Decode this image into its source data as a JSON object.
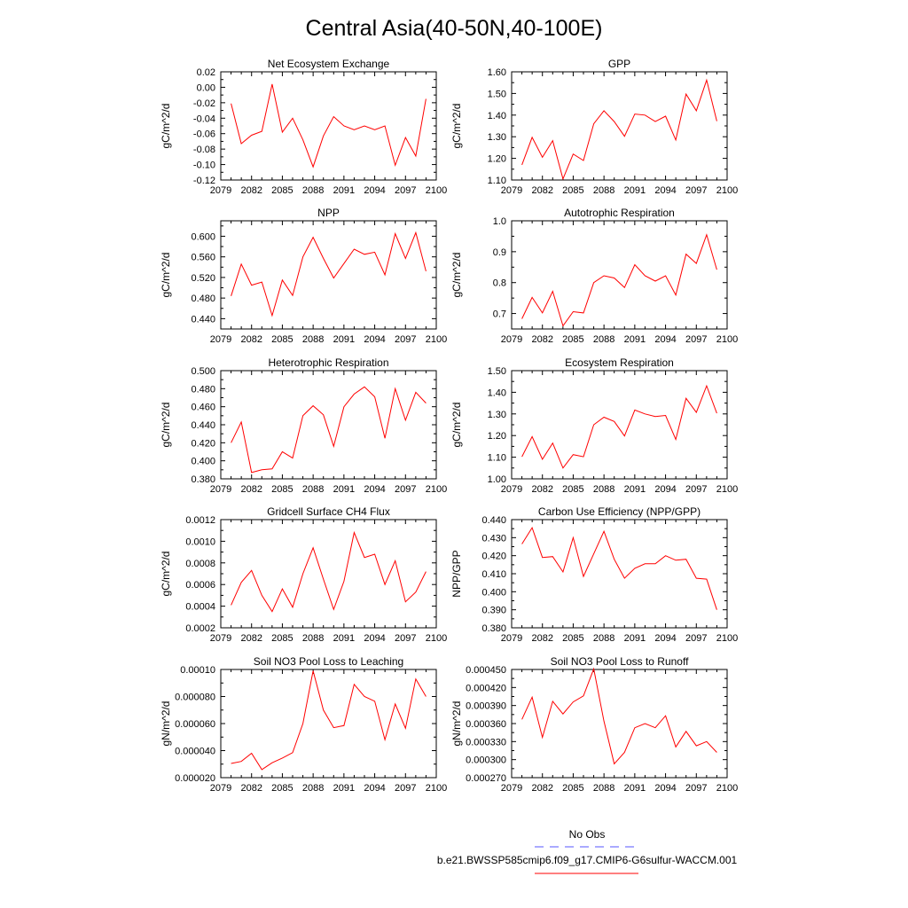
{
  "title": "Central Asia(40-50N,40-100E)",
  "colors": {
    "series": "#ff0000",
    "obs": "#5555ff",
    "axis": "#000000"
  },
  "legend": {
    "obs_label": "No Obs",
    "model_label": "b.e21.BWSSP585cmip6.f09_g17.CMIP6-G6sulfur-WACCM.001"
  },
  "chart_data": [
    {
      "type": "line",
      "title": "Net Ecosystem Exchange",
      "ylabel": "gC/m^2/d",
      "xlim": [
        2079,
        2100
      ],
      "ylim": [
        -0.12,
        0.02
      ],
      "xticks": [
        2079,
        2082,
        2085,
        2088,
        2091,
        2094,
        2097,
        2100
      ],
      "xtick_labels": [
        "2079",
        "2082",
        "2085",
        "2088",
        "2091",
        "2094",
        "2097",
        "2100"
      ],
      "yticks": [
        -0.12,
        -0.1,
        -0.08,
        -0.06,
        -0.04,
        -0.02,
        0.0,
        0.02
      ],
      "ytick_labels": [
        "-0.12",
        "-0.10",
        "-0.08",
        "-0.06",
        "-0.04",
        "-0.02",
        "0.00",
        "0.02"
      ],
      "x": [
        2080,
        2081,
        2082,
        2083,
        2084,
        2085,
        2086,
        2087,
        2088,
        2089,
        2090,
        2091,
        2092,
        2093,
        2094,
        2095,
        2096,
        2097,
        2098,
        2099
      ],
      "values": [
        -0.021,
        -0.073,
        -0.062,
        -0.057,
        0.004,
        -0.058,
        -0.04,
        -0.068,
        -0.103,
        -0.063,
        -0.038,
        -0.05,
        -0.055,
        -0.05,
        -0.055,
        -0.05,
        -0.101,
        -0.065,
        -0.089,
        -0.015
      ]
    },
    {
      "type": "line",
      "title": "GPP",
      "ylabel": "gC/m^2/d",
      "xlim": [
        2079,
        2100
      ],
      "ylim": [
        1.1,
        1.6
      ],
      "xticks": [
        2079,
        2082,
        2085,
        2088,
        2091,
        2094,
        2097,
        2100
      ],
      "xtick_labels": [
        "2079",
        "2082",
        "2085",
        "2088",
        "2091",
        "2094",
        "2097",
        "2100"
      ],
      "yticks": [
        1.1,
        1.2,
        1.3,
        1.4,
        1.5,
        1.6
      ],
      "ytick_labels": [
        "1.10",
        "1.20",
        "1.30",
        "1.40",
        "1.50",
        "1.60"
      ],
      "x": [
        2080,
        2081,
        2082,
        2083,
        2084,
        2085,
        2086,
        2087,
        2088,
        2089,
        2090,
        2091,
        2092,
        2093,
        2094,
        2095,
        2096,
        2097,
        2098,
        2099
      ],
      "values": [
        1.17,
        1.297,
        1.205,
        1.282,
        1.105,
        1.22,
        1.19,
        1.36,
        1.42,
        1.37,
        1.302,
        1.405,
        1.4,
        1.37,
        1.395,
        1.285,
        1.497,
        1.42,
        1.562,
        1.372
      ]
    },
    {
      "type": "line",
      "title": "NPP",
      "ylabel": "gC/m^2/d",
      "xlim": [
        2079,
        2100
      ],
      "ylim": [
        0.42,
        0.63
      ],
      "xticks": [
        2079,
        2082,
        2085,
        2088,
        2091,
        2094,
        2097,
        2100
      ],
      "xtick_labels": [
        "2079",
        "2082",
        "2085",
        "2088",
        "2091",
        "2094",
        "2097",
        "2100"
      ],
      "yticks": [
        0.44,
        0.48,
        0.52,
        0.56,
        0.6
      ],
      "ytick_labels": [
        "0.440",
        "0.480",
        "0.520",
        "0.560",
        "0.600"
      ],
      "x": [
        2080,
        2081,
        2082,
        2083,
        2084,
        2085,
        2086,
        2087,
        2088,
        2089,
        2090,
        2091,
        2092,
        2093,
        2094,
        2095,
        2096,
        2097,
        2098,
        2099
      ],
      "values": [
        0.484,
        0.546,
        0.505,
        0.511,
        0.446,
        0.515,
        0.485,
        0.56,
        0.598,
        0.557,
        0.519,
        0.547,
        0.575,
        0.565,
        0.569,
        0.525,
        0.605,
        0.557,
        0.607,
        0.532
      ]
    },
    {
      "type": "line",
      "title": "Autotrophic Respiration",
      "ylabel": "gC/m^2/d",
      "xlim": [
        2079,
        2100
      ],
      "ylim": [
        0.65,
        1.0
      ],
      "xticks": [
        2079,
        2082,
        2085,
        2088,
        2091,
        2094,
        2097,
        2100
      ],
      "xtick_labels": [
        "2079",
        "2082",
        "2085",
        "2088",
        "2091",
        "2094",
        "2097",
        "2100"
      ],
      "yticks": [
        0.7,
        0.8,
        0.9,
        1.0
      ],
      "ytick_labels": [
        "0.7",
        "0.8",
        "0.9",
        "1.0"
      ],
      "x": [
        2080,
        2081,
        2082,
        2083,
        2084,
        2085,
        2086,
        2087,
        2088,
        2089,
        2090,
        2091,
        2092,
        2093,
        2094,
        2095,
        2096,
        2097,
        2098,
        2099
      ],
      "values": [
        0.683,
        0.752,
        0.702,
        0.772,
        0.66,
        0.706,
        0.702,
        0.8,
        0.822,
        0.815,
        0.784,
        0.858,
        0.822,
        0.805,
        0.822,
        0.76,
        0.892,
        0.862,
        0.955,
        0.842
      ]
    },
    {
      "type": "line",
      "title": "Heterotrophic Respiration",
      "ylabel": "gC/m^2/d",
      "xlim": [
        2079,
        2100
      ],
      "ylim": [
        0.38,
        0.5
      ],
      "xticks": [
        2079,
        2082,
        2085,
        2088,
        2091,
        2094,
        2097,
        2100
      ],
      "xtick_labels": [
        "2079",
        "2082",
        "2085",
        "2088",
        "2091",
        "2094",
        "2097",
        "2100"
      ],
      "yticks": [
        0.38,
        0.4,
        0.42,
        0.44,
        0.46,
        0.48,
        0.5
      ],
      "ytick_labels": [
        "0.380",
        "0.400",
        "0.420",
        "0.440",
        "0.460",
        "0.480",
        "0.500"
      ],
      "x": [
        2080,
        2081,
        2082,
        2083,
        2084,
        2085,
        2086,
        2087,
        2088,
        2089,
        2090,
        2091,
        2092,
        2093,
        2094,
        2095,
        2096,
        2097,
        2098,
        2099
      ],
      "values": [
        0.42,
        0.443,
        0.387,
        0.39,
        0.391,
        0.41,
        0.403,
        0.45,
        0.461,
        0.451,
        0.416,
        0.46,
        0.474,
        0.482,
        0.471,
        0.425,
        0.48,
        0.445,
        0.476,
        0.464
      ]
    },
    {
      "type": "line",
      "title": "Ecosystem Respiration",
      "ylabel": "gC/m^2/d",
      "xlim": [
        2079,
        2100
      ],
      "ylim": [
        1.0,
        1.5
      ],
      "xticks": [
        2079,
        2082,
        2085,
        2088,
        2091,
        2094,
        2097,
        2100
      ],
      "xtick_labels": [
        "2079",
        "2082",
        "2085",
        "2088",
        "2091",
        "2094",
        "2097",
        "2100"
      ],
      "yticks": [
        1.0,
        1.1,
        1.2,
        1.3,
        1.4,
        1.5
      ],
      "ytick_labels": [
        "1.00",
        "1.10",
        "1.20",
        "1.30",
        "1.40",
        "1.50"
      ],
      "x": [
        2080,
        2081,
        2082,
        2083,
        2084,
        2085,
        2086,
        2087,
        2088,
        2089,
        2090,
        2091,
        2092,
        2093,
        2094,
        2095,
        2096,
        2097,
        2098,
        2099
      ],
      "values": [
        1.102,
        1.195,
        1.09,
        1.165,
        1.05,
        1.112,
        1.102,
        1.25,
        1.285,
        1.265,
        1.198,
        1.318,
        1.3,
        1.288,
        1.293,
        1.182,
        1.372,
        1.307,
        1.43,
        1.303
      ]
    },
    {
      "type": "line",
      "title": "Gridcell Surface CH4 Flux",
      "ylabel": "gC/m^2/d",
      "xlim": [
        2079,
        2100
      ],
      "ylim": [
        0.0002,
        0.0012
      ],
      "xticks": [
        2079,
        2082,
        2085,
        2088,
        2091,
        2094,
        2097,
        2100
      ],
      "xtick_labels": [
        "2079",
        "2082",
        "2085",
        "2088",
        "2091",
        "2094",
        "2097",
        "2100"
      ],
      "yticks": [
        0.0002,
        0.0004,
        0.0006,
        0.0008,
        0.001,
        0.0012
      ],
      "ytick_labels": [
        "0.0002",
        "0.0004",
        "0.0006",
        "0.0008",
        "0.0010",
        "0.0012"
      ],
      "x": [
        2080,
        2081,
        2082,
        2083,
        2084,
        2085,
        2086,
        2087,
        2088,
        2089,
        2090,
        2091,
        2092,
        2093,
        2094,
        2095,
        2096,
        2097,
        2098,
        2099
      ],
      "values": [
        0.00041,
        0.00062,
        0.00073,
        0.0005,
        0.00035,
        0.00056,
        0.00039,
        0.0007,
        0.00094,
        0.00065,
        0.00037,
        0.00063,
        0.00108,
        0.00085,
        0.00088,
        0.0006,
        0.00082,
        0.00044,
        0.00053,
        0.00072
      ]
    },
    {
      "type": "line",
      "title": "Carbon Use Efficiency (NPP/GPP)",
      "ylabel": "NPP/GPP",
      "xlim": [
        2079,
        2100
      ],
      "ylim": [
        0.38,
        0.44
      ],
      "xticks": [
        2079,
        2082,
        2085,
        2088,
        2091,
        2094,
        2097,
        2100
      ],
      "xtick_labels": [
        "2079",
        "2082",
        "2085",
        "2088",
        "2091",
        "2094",
        "2097",
        "2100"
      ],
      "yticks": [
        0.38,
        0.39,
        0.4,
        0.41,
        0.42,
        0.43,
        0.44
      ],
      "ytick_labels": [
        "0.380",
        "0.390",
        "0.400",
        "0.410",
        "0.420",
        "0.430",
        "0.440"
      ],
      "x": [
        2080,
        2081,
        2082,
        2083,
        2084,
        2085,
        2086,
        2087,
        2088,
        2089,
        2090,
        2091,
        2092,
        2093,
        2094,
        2095,
        2096,
        2097,
        2098,
        2099
      ],
      "values": [
        0.4265,
        0.4355,
        0.419,
        0.4195,
        0.411,
        0.43,
        0.4085,
        0.421,
        0.4335,
        0.418,
        0.4075,
        0.413,
        0.4155,
        0.4155,
        0.42,
        0.4175,
        0.418,
        0.4075,
        0.407,
        0.39
      ]
    },
    {
      "type": "line",
      "title": "Soil NO3 Pool Loss to Leaching",
      "ylabel": "gN/m^2/d",
      "xlim": [
        2079,
        2100
      ],
      "ylim": [
        2e-05,
        0.0001
      ],
      "xticks": [
        2079,
        2082,
        2085,
        2088,
        2091,
        2094,
        2097,
        2100
      ],
      "xtick_labels": [
        "2079",
        "2082",
        "2085",
        "2088",
        "2091",
        "2094",
        "2097",
        "2100"
      ],
      "yticks": [
        2e-05,
        4e-05,
        6e-05,
        8e-05,
        0.0001
      ],
      "ytick_labels": [
        "0.000020",
        "0.000040",
        "0.000060",
        "0.000080",
        "0.00010"
      ],
      "x": [
        2080,
        2081,
        2082,
        2083,
        2084,
        2085,
        2086,
        2087,
        2088,
        2089,
        2090,
        2091,
        2092,
        2093,
        2094,
        2095,
        2096,
        2097,
        2098,
        2099
      ],
      "values": [
        3.05e-05,
        3.2e-05,
        3.8e-05,
        2.6e-05,
        3.1e-05,
        3.45e-05,
        3.85e-05,
        6e-05,
        9.9e-05,
        7e-05,
        5.7e-05,
        5.85e-05,
        8.9e-05,
        8e-05,
        7.65e-05,
        4.8e-05,
        7.45e-05,
        5.65e-05,
        9.3e-05,
        8e-05
      ]
    },
    {
      "type": "line",
      "title": "Soil NO3 Pool Loss to Runoff",
      "ylabel": "gN/m^2/d",
      "xlim": [
        2079,
        2100
      ],
      "ylim": [
        0.00027,
        0.00045
      ],
      "xticks": [
        2079,
        2082,
        2085,
        2088,
        2091,
        2094,
        2097,
        2100
      ],
      "xtick_labels": [
        "2079",
        "2082",
        "2085",
        "2088",
        "2091",
        "2094",
        "2097",
        "2100"
      ],
      "yticks": [
        0.00027,
        0.0003,
        0.00033,
        0.00036,
        0.00039,
        0.00042,
        0.00045
      ],
      "ytick_labels": [
        "0.000270",
        "0.000300",
        "0.000330",
        "0.000360",
        "0.000390",
        "0.000420",
        "0.000450"
      ],
      "x": [
        2080,
        2081,
        2082,
        2083,
        2084,
        2085,
        2086,
        2087,
        2088,
        2089,
        2090,
        2091,
        2092,
        2093,
        2094,
        2095,
        2096,
        2097,
        2098,
        2099
      ],
      "values": [
        0.000367,
        0.000404,
        0.000337,
        0.000397,
        0.000376,
        0.000396,
        0.000406,
        0.000451,
        0.000364,
        0.000293,
        0.000312,
        0.000353,
        0.00036,
        0.000353,
        0.000373,
        0.000321,
        0.000347,
        0.000323,
        0.00033,
        0.000312
      ]
    }
  ]
}
